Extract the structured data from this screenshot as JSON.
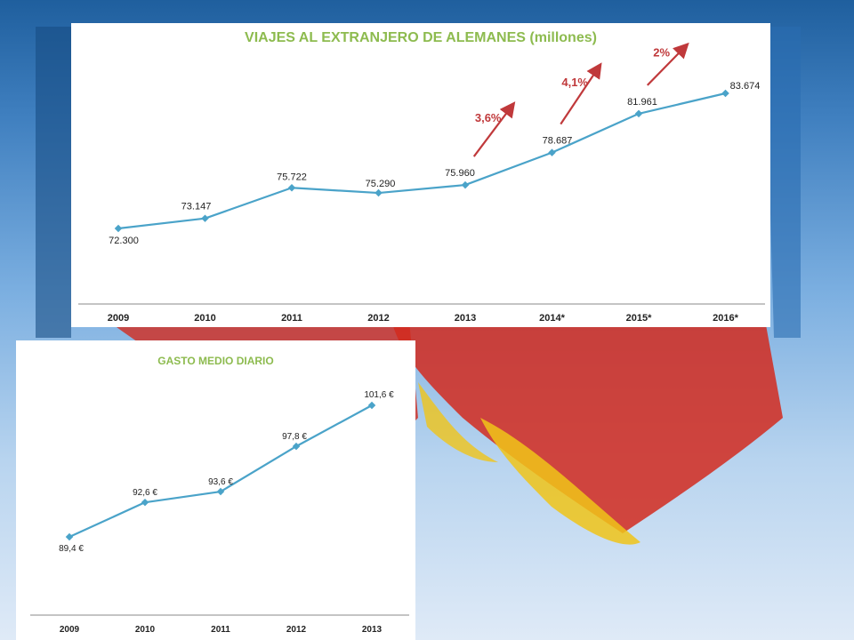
{
  "chart_data": [
    {
      "type": "line",
      "title": "VIAJES AL EXTRANJERO DE ALEMANES (millones)",
      "categories": [
        "2009",
        "2010",
        "2011",
        "2012",
        "2013",
        "2014*",
        "2015*",
        "2016*"
      ],
      "values": [
        72.3,
        73.147,
        75.722,
        75.29,
        75.96,
        78.687,
        81.961,
        83.674
      ],
      "data_labels": [
        "72.300",
        "73.147",
        "75.722",
        "75.290",
        "75.960",
        "78.687",
        "81.961",
        "83.674"
      ],
      "annotations": [
        {
          "label": "3,6%",
          "from": "2013",
          "to": "2014*"
        },
        {
          "label": "4,1%",
          "from": "2014*",
          "to": "2015*"
        },
        {
          "label": "2%",
          "from": "2015*",
          "to": "2016*"
        }
      ],
      "series_color": "#4aa3c9",
      "annotation_color": "#c0393b",
      "title_color": "#8dbb4f",
      "grid": false,
      "legend": "none"
    },
    {
      "type": "line",
      "title": "GASTO MEDIO DIARIO",
      "categories": [
        "2009",
        "2010",
        "2011",
        "2012",
        "2013"
      ],
      "values": [
        89.4,
        92.6,
        93.6,
        97.8,
        101.6
      ],
      "data_labels": [
        "89,4 €",
        "92,6 €",
        "93,6 €",
        "97,8 €",
        "101,6 €"
      ],
      "series_color": "#4aa3c9",
      "title_color": "#8dbb4f",
      "grid": false,
      "legend": "none"
    }
  ],
  "background": {
    "colors": [
      "#1f5f9e",
      "#7aaee0",
      "#dfeaf7",
      "#d22a1e",
      "#f0c419"
    ]
  }
}
